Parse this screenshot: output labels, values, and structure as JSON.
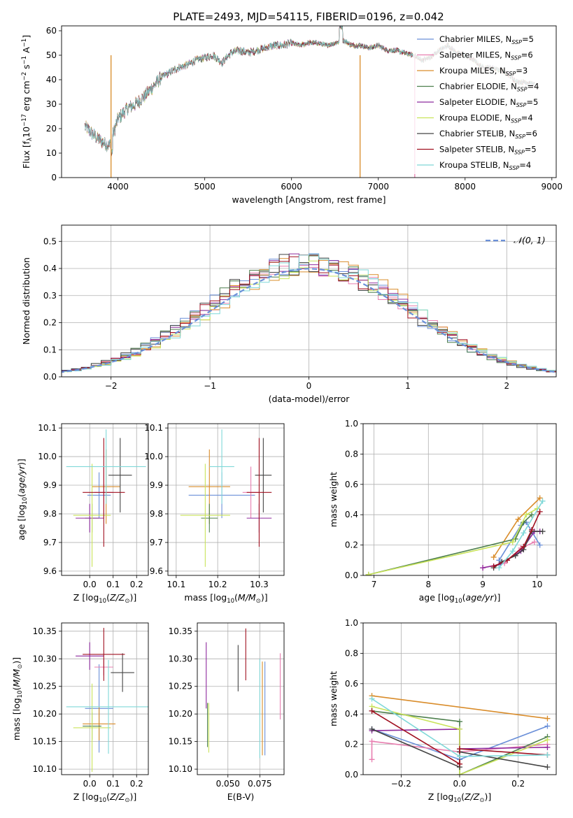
{
  "figure_title": "PLATE=2493, MJD=54115, FIBERID=0196, z=0.042",
  "colors": {
    "Chabrier MILES": "#6a8fd8",
    "Salpeter MILES": "#e87fb0",
    "Kroupa MILES": "#d98c2a",
    "Chabrier ELODIE": "#4d7f4d",
    "Salpeter ELODIE": "#8e2a9e",
    "Kroupa ELODIE": "#c9e35a",
    "Chabrier STELIB": "#444444",
    "Salpeter STELIB": "#a01020",
    "Kroupa STELIB": "#7fd8d8"
  },
  "chart_data": [
    {
      "id": "spectrum",
      "type": "line",
      "xlabel": "wavelength [Angstrom, rest frame]",
      "ylabel": "Flux [f_λ10^-17 erg cm^-2 s^-1 A^-1]",
      "xlim": [
        3350,
        9050
      ],
      "ylim": [
        0,
        62
      ],
      "xticks": [
        4000,
        5000,
        6000,
        7000,
        8000,
        9000
      ],
      "yticks": [
        0,
        10,
        20,
        30,
        40,
        50,
        60
      ],
      "legend_position": "upper-right",
      "series": [
        {
          "name": "Chabrier MILES, N_SSP=5",
          "key": "Chabrier MILES"
        },
        {
          "name": "Salpeter MILES, N_SSP=6",
          "key": "Salpeter MILES"
        },
        {
          "name": "Kroupa MILES, N_SSP=3",
          "key": "Kroupa MILES"
        },
        {
          "name": "Chabrier ELODIE, N_SSP=4",
          "key": "Chabrier ELODIE"
        },
        {
          "name": "Salpeter ELODIE, N_SSP=5",
          "key": "Salpeter ELODIE"
        },
        {
          "name": "Kroupa ELODIE, N_SSP=4",
          "key": "Kroupa ELODIE"
        },
        {
          "name": "Chabrier STELIB, N_SSP=6",
          "key": "Chabrier STELIB"
        },
        {
          "name": "Salpeter STELIB, N_SSP=5",
          "key": "Salpeter STELIB"
        },
        {
          "name": "Kroupa STELIB, N_SSP=4",
          "key": "Kroupa STELIB"
        }
      ],
      "continuum": {
        "x": [
          3620,
          3700,
          3800,
          3900,
          4000,
          4100,
          4200,
          4300,
          4400,
          4500,
          4600,
          4700,
          4800,
          4900,
          5000,
          5100,
          5200,
          5300,
          5400,
          5500,
          5600,
          5700,
          5800,
          5900,
          6000,
          6100,
          6200,
          6300,
          6400,
          6500,
          6600,
          6700,
          6800,
          6900,
          7000,
          7100,
          7200,
          7300,
          7400,
          7500,
          7600,
          7700,
          7800,
          7900,
          8000,
          8100,
          8200,
          8300,
          8400,
          8500,
          8600,
          8700,
          8800
        ],
        "y": [
          21,
          18,
          15,
          13,
          24,
          28,
          30,
          33,
          37,
          41,
          43,
          45,
          46,
          48,
          49,
          50,
          47,
          51,
          52,
          51,
          52,
          53,
          54,
          54,
          55,
          54,
          55,
          55,
          54,
          55,
          56,
          54,
          54,
          53,
          54,
          52,
          52,
          51,
          50,
          48,
          49,
          52,
          54,
          51,
          50,
          48,
          45,
          45,
          44,
          42,
          39,
          39,
          38
        ]
      }
    },
    {
      "id": "residuals",
      "type": "histogram",
      "xlabel": "(data-model)/error",
      "ylabel": "Normed distribution",
      "xlim": [
        -2.5,
        2.5
      ],
      "ylim": [
        0,
        0.56
      ],
      "xticks": [
        -2,
        -1,
        0,
        1,
        2
      ],
      "yticks": [
        0,
        0.1,
        0.2,
        0.3,
        0.4,
        0.5
      ],
      "bin_width": 0.1,
      "legend_position": "upper-right",
      "reference_curve": "N(0,1)",
      "reference_label": "𝒩(0, 1)"
    },
    {
      "id": "age_vs_Z",
      "type": "errorbar",
      "xlabel": "Z [log10(Z/Z⊙)]",
      "ylabel": "age [log10(age/yr)]",
      "xlim": [
        -0.12,
        0.25
      ],
      "ylim": [
        9.585,
        10.115
      ],
      "xticks": [
        0.0,
        0.1,
        0.2
      ],
      "yticks": [
        9.6,
        9.7,
        9.8,
        9.9,
        10.0,
        10.1
      ],
      "points": [
        {
          "key": "Chabrier MILES",
          "x": 0.04,
          "xerr": 0.05,
          "y": 9.865,
          "yerr": 0.08
        },
        {
          "key": "Salpeter MILES",
          "x": 0.06,
          "xerr": 0.04,
          "y": 9.875,
          "yerr": 0.09
        },
        {
          "key": "Kroupa MILES",
          "x": 0.07,
          "xerr": 0.06,
          "y": 9.895,
          "yerr": 0.13
        },
        {
          "key": "Chabrier ELODIE",
          "x": 0.01,
          "xerr": 0.03,
          "y": 9.785,
          "yerr": 0.05
        },
        {
          "key": "Salpeter ELODIE",
          "x": 0.0,
          "xerr": 0.06,
          "y": 9.785,
          "yerr": 0.05
        },
        {
          "key": "Kroupa ELODIE",
          "x": 0.01,
          "xerr": 0.08,
          "y": 9.795,
          "yerr": 0.18
        },
        {
          "key": "Chabrier STELIB",
          "x": 0.13,
          "xerr": 0.05,
          "y": 9.935,
          "yerr": 0.13
        },
        {
          "key": "Salpeter STELIB",
          "x": 0.06,
          "xerr": 0.09,
          "y": 9.875,
          "yerr": 0.19
        },
        {
          "key": "Kroupa STELIB",
          "x": 0.07,
          "xerr": 0.17,
          "y": 9.965,
          "yerr": 0.13
        }
      ]
    },
    {
      "id": "age_vs_mass",
      "type": "errorbar",
      "xlabel": "mass [log10(M/M⊙)]",
      "ylabel": "",
      "xlim": [
        10.08,
        10.36
      ],
      "ylim": [
        9.585,
        10.115
      ],
      "xticks": [
        10.1,
        10.2,
        10.3
      ],
      "yticks": [
        9.6,
        9.7,
        9.8,
        9.9,
        10.0,
        10.1
      ],
      "points": [
        {
          "key": "Chabrier MILES",
          "x": 10.21,
          "xerr": 0.08,
          "y": 9.865,
          "yerr": 0.08
        },
        {
          "key": "Salpeter MILES",
          "x": 10.28,
          "xerr": 0.02,
          "y": 9.875,
          "yerr": 0.09
        },
        {
          "key": "Kroupa MILES",
          "x": 10.18,
          "xerr": 0.05,
          "y": 9.895,
          "yerr": 0.13
        },
        {
          "key": "Chabrier ELODIE",
          "x": 10.18,
          "xerr": 0.02,
          "y": 9.785,
          "yerr": 0.05
        },
        {
          "key": "Salpeter ELODIE",
          "x": 10.3,
          "xerr": 0.03,
          "y": 9.785,
          "yerr": 0.05
        },
        {
          "key": "Kroupa ELODIE",
          "x": 10.17,
          "xerr": 0.06,
          "y": 9.795,
          "yerr": 0.18
        },
        {
          "key": "Chabrier STELIB",
          "x": 10.31,
          "xerr": 0.02,
          "y": 9.935,
          "yerr": 0.13
        },
        {
          "key": "Salpeter STELIB",
          "x": 10.3,
          "xerr": 0.03,
          "y": 9.875,
          "yerr": 0.19
        },
        {
          "key": "Kroupa STELIB",
          "x": 10.21,
          "xerr": 0.03,
          "y": 9.965,
          "yerr": 0.13
        }
      ]
    },
    {
      "id": "mass_weight_vs_age",
      "type": "line",
      "xlabel": "age [log10(age/yr)]",
      "ylabel": "mass weight",
      "xlim": [
        6.8,
        10.35
      ],
      "ylim": [
        0,
        1.0
      ],
      "xticks": [
        7,
        8,
        9,
        10
      ],
      "yticks": [
        0.0,
        0.2,
        0.4,
        0.6,
        0.8,
        1.0
      ],
      "marker": "+",
      "series": [
        {
          "key": "Chabrier MILES",
          "x": [
            9.3,
            9.7,
            9.8,
            10.05
          ],
          "y": [
            0.1,
            0.33,
            0.35,
            0.2
          ]
        },
        {
          "key": "Salpeter MILES",
          "x": [
            9.0,
            9.4,
            9.7,
            9.95
          ],
          "y": [
            0.05,
            0.08,
            0.18,
            0.22
          ]
        },
        {
          "key": "Kroupa MILES",
          "x": [
            9.2,
            9.65,
            10.05
          ],
          "y": [
            0.12,
            0.37,
            0.51
          ]
        },
        {
          "key": "Chabrier ELODIE",
          "x": [
            6.9,
            9.6,
            9.75,
            9.9
          ],
          "y": [
            0.005,
            0.24,
            0.35,
            0.4
          ]
        },
        {
          "key": "Salpeter ELODIE",
          "x": [
            9.0,
            9.3,
            9.7,
            9.95,
            10.05
          ],
          "y": [
            0.05,
            0.07,
            0.16,
            0.29,
            0.29
          ]
        },
        {
          "key": "Kroupa ELODIE",
          "x": [
            6.9,
            9.55,
            9.8,
            10.0
          ],
          "y": [
            0.005,
            0.22,
            0.4,
            0.44
          ]
        },
        {
          "key": "Chabrier STELIB",
          "x": [
            9.2,
            9.35,
            9.6,
            9.75,
            9.9,
            10.1
          ],
          "y": [
            0.05,
            0.09,
            0.13,
            0.17,
            0.29,
            0.29
          ]
        },
        {
          "key": "Salpeter STELIB",
          "x": [
            9.2,
            9.45,
            9.75,
            9.9,
            10.05
          ],
          "y": [
            0.06,
            0.1,
            0.19,
            0.3,
            0.42
          ]
        },
        {
          "key": "Kroupa STELIB",
          "x": [
            9.3,
            9.55,
            9.75,
            10.1
          ],
          "y": [
            0.05,
            0.16,
            0.28,
            0.49
          ]
        }
      ]
    },
    {
      "id": "mass_vs_Z",
      "type": "errorbar",
      "xlabel": "Z [log10(Z/Z⊙)]",
      "ylabel": "mass [log10(M/M⊙)]",
      "xlim": [
        -0.12,
        0.25
      ],
      "ylim": [
        10.09,
        10.365
      ],
      "xticks": [
        0.0,
        0.1,
        0.2
      ],
      "yticks": [
        10.1,
        10.15,
        10.2,
        10.25,
        10.3,
        10.35
      ],
      "points": [
        {
          "key": "Chabrier MILES",
          "x": 0.04,
          "xerr": 0.06,
          "y": 10.21,
          "yerr": 0.08
        },
        {
          "key": "Salpeter MILES",
          "x": 0.06,
          "xerr": 0.04,
          "y": 10.285,
          "yerr": 0.015
        },
        {
          "key": "Kroupa MILES",
          "x": 0.04,
          "xerr": 0.07,
          "y": 10.182,
          "yerr": 0.03
        },
        {
          "key": "Chabrier ELODIE",
          "x": 0.01,
          "xerr": 0.04,
          "y": 10.178,
          "yerr": 0.025
        },
        {
          "key": "Salpeter ELODIE",
          "x": 0.0,
          "xerr": 0.06,
          "y": 10.305,
          "yerr": 0.025
        },
        {
          "key": "Kroupa ELODIE",
          "x": 0.01,
          "xerr": 0.08,
          "y": 10.175,
          "yerr": 0.08
        },
        {
          "key": "Chabrier STELIB",
          "x": 0.14,
          "xerr": 0.05,
          "y": 10.275,
          "yerr": 0.035
        },
        {
          "key": "Salpeter STELIB",
          "x": 0.06,
          "xerr": 0.09,
          "y": 10.308,
          "yerr": 0.048
        },
        {
          "key": "Kroupa STELIB",
          "x": 0.08,
          "xerr": 0.18,
          "y": 10.213,
          "yerr": 0.085
        }
      ]
    },
    {
      "id": "mass_vs_EBV",
      "type": "errorbar",
      "xlabel": "E(B-V)",
      "ylabel": "",
      "xlim": [
        0.026,
        0.094
      ],
      "ylim": [
        10.09,
        10.365
      ],
      "xticks": [
        0.05,
        0.075
      ],
      "yticks": [
        10.1,
        10.15,
        10.2,
        10.25,
        10.3,
        10.35
      ],
      "points": [
        {
          "key": "Chabrier MILES",
          "x": 0.079,
          "y": 10.21,
          "yerr": 0.085
        },
        {
          "key": "Salpeter MILES",
          "x": 0.091,
          "y": 10.25,
          "yerr": 0.06
        },
        {
          "key": "Kroupa MILES",
          "x": 0.077,
          "y": 10.21,
          "yerr": 0.085
        },
        {
          "key": "Chabrier ELODIE",
          "x": 0.034,
          "y": 10.18,
          "yerr": 0.04
        },
        {
          "key": "Salpeter ELODIE",
          "x": 0.033,
          "y": 10.27,
          "yerr": 0.06
        },
        {
          "key": "Kroupa ELODIE",
          "x": 0.035,
          "y": 10.175,
          "yerr": 0.045
        },
        {
          "key": "Chabrier STELIB",
          "x": 0.058,
          "y": 10.283,
          "yerr": 0.042
        },
        {
          "key": "Salpeter STELIB",
          "x": 0.064,
          "y": 10.308,
          "yerr": 0.047
        },
        {
          "key": "Kroupa STELIB",
          "x": 0.075,
          "y": 10.21,
          "yerr": 0.09
        }
      ]
    },
    {
      "id": "mass_weight_vs_Z",
      "type": "line",
      "xlabel": "Z [log10(Z/Z⊙)]",
      "ylabel": "mass weight",
      "xlim": [
        -0.33,
        0.33
      ],
      "ylim": [
        0,
        1.0
      ],
      "xticks": [
        -0.2,
        0.0,
        0.2
      ],
      "yticks": [
        0.0,
        0.2,
        0.4,
        0.6,
        0.8,
        1.0
      ],
      "marker": "+",
      "series": [
        {
          "key": "Chabrier MILES",
          "x": [
            -0.3,
            0.0,
            0.3
          ],
          "y": [
            0.3,
            0.1,
            0.32
          ]
        },
        {
          "key": "Salpeter MILES",
          "x": [
            -0.3,
            -0.3,
            0.0,
            0.3
          ],
          "y": [
            0.1,
            0.22,
            0.15,
            0.2
          ]
        },
        {
          "key": "Kroupa MILES",
          "x": [
            -0.3,
            0.3
          ],
          "y": [
            0.52,
            0.37
          ]
        },
        {
          "key": "Chabrier ELODIE",
          "x": [
            -0.3,
            0.0,
            0.0,
            0.3
          ],
          "y": [
            0.42,
            0.35,
            0.0,
            0.25
          ]
        },
        {
          "key": "Salpeter ELODIE",
          "x": [
            -0.3,
            0.0,
            0.0,
            0.3
          ],
          "y": [
            0.29,
            0.3,
            0.17,
            0.18
          ]
        },
        {
          "key": "Kroupa ELODIE",
          "x": [
            -0.3,
            0.0,
            0.0,
            0.3
          ],
          "y": [
            0.45,
            0.3,
            0.0,
            0.23
          ]
        },
        {
          "key": "Chabrier STELIB",
          "x": [
            -0.3,
            0.0,
            0.0,
            0.3
          ],
          "y": [
            0.3,
            0.05,
            0.15,
            0.05
          ]
        },
        {
          "key": "Salpeter STELIB",
          "x": [
            -0.3,
            0.0,
            0.0,
            0.3
          ],
          "y": [
            0.42,
            0.07,
            0.17,
            0.13
          ]
        },
        {
          "key": "Kroupa STELIB",
          "x": [
            -0.3,
            0.0,
            0.3
          ],
          "y": [
            0.5,
            0.12,
            0.13
          ]
        }
      ]
    }
  ]
}
